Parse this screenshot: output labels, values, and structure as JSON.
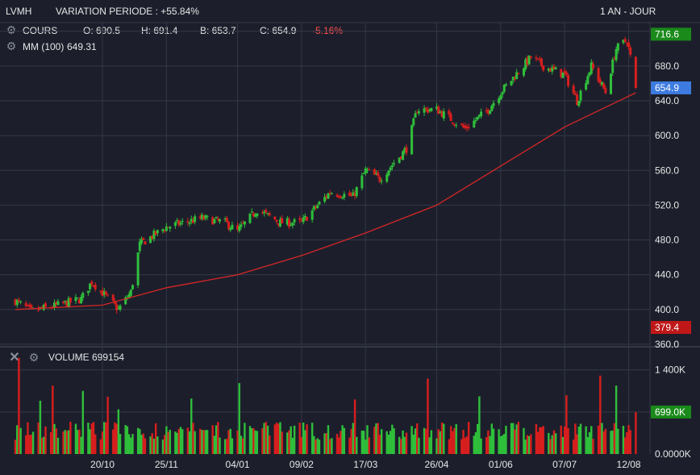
{
  "header": {
    "symbol": "LVMH",
    "variation": "VARIATION PERIODE : +55.84%",
    "period": "1 AN - JOUR"
  },
  "legend": {
    "price_label": "COURS",
    "open": "O: 690.5",
    "high": "H: 691.4",
    "low": "B: 653.7",
    "close": "C: 654.9",
    "change": "-5.16%",
    "ma_label": "MM (100)",
    "ma_value": "649.31",
    "volume_label": "VOLUME",
    "volume_value": "699154"
  },
  "colors": {
    "background": "#1c1f2b",
    "grid": "#343846",
    "up": "#2fbf3b",
    "down": "#d81e1e",
    "ma": "#d62626",
    "change_negative": "#ff4d4d",
    "badge_high": "#1a8a1a",
    "badge_last": "#3d7be0",
    "badge_low": "#c01818",
    "badge_volume": "#1a8a1a"
  },
  "chart_data": [
    {
      "type": "candlestick",
      "title": "LVMH",
      "series": [
        {
          "name": "COURS",
          "anchors": [
            {
              "date": "2020-09-01",
              "close": 410
            },
            {
              "date": "2020-09-10",
              "close": 398
            },
            {
              "date": "2020-09-25",
              "close": 405
            },
            {
              "date": "2020-10-08",
              "close": 412
            },
            {
              "date": "2020-10-14",
              "close": 432
            },
            {
              "date": "2020-10-29",
              "close": 400
            },
            {
              "date": "2020-11-05",
              "close": 420
            },
            {
              "date": "2020-11-10",
              "close": 475
            },
            {
              "date": "2020-11-25",
              "close": 495
            },
            {
              "date": "2020-12-15",
              "close": 505
            },
            {
              "date": "2020-12-28",
              "close": 500
            },
            {
              "date": "2021-01-04",
              "close": 490
            },
            {
              "date": "2021-01-15",
              "close": 515
            },
            {
              "date": "2021-01-28",
              "close": 500
            },
            {
              "date": "2021-02-09",
              "close": 500
            },
            {
              "date": "2021-02-25",
              "close": 535
            },
            {
              "date": "2021-03-10",
              "close": 530
            },
            {
              "date": "2021-03-17",
              "close": 560
            },
            {
              "date": "2021-03-25",
              "close": 550
            },
            {
              "date": "2021-04-09",
              "close": 585
            },
            {
              "date": "2021-04-15",
              "close": 630
            },
            {
              "date": "2021-04-26",
              "close": 630
            },
            {
              "date": "2021-05-12",
              "close": 608
            },
            {
              "date": "2021-05-25",
              "close": 630
            },
            {
              "date": "2021-06-01",
              "close": 650
            },
            {
              "date": "2021-06-18",
              "close": 690
            },
            {
              "date": "2021-06-25",
              "close": 680
            },
            {
              "date": "2021-07-07",
              "close": 670
            },
            {
              "date": "2021-07-14",
              "close": 640
            },
            {
              "date": "2021-07-22",
              "close": 680
            },
            {
              "date": "2021-07-30",
              "close": 650
            },
            {
              "date": "2021-08-05",
              "close": 700
            },
            {
              "date": "2021-08-11",
              "close": 710
            },
            {
              "date": "2021-08-13",
              "close": 690.5
            },
            {
              "date": "2021-08-16",
              "close": 654.9
            }
          ],
          "last": {
            "open": 690.5,
            "high": 691.4,
            "low": 653.7,
            "close": 654.9,
            "change_pct": -5.16
          }
        },
        {
          "name": "MM (100)",
          "anchors": [
            {
              "date": "2020-09-01",
              "value": 400
            },
            {
              "date": "2020-10-20",
              "value": 405
            },
            {
              "date": "2020-11-25",
              "value": 425
            },
            {
              "date": "2021-01-04",
              "value": 440
            },
            {
              "date": "2021-02-09",
              "value": 462
            },
            {
              "date": "2021-03-17",
              "value": 488
            },
            {
              "date": "2021-04-26",
              "value": 520
            },
            {
              "date": "2021-06-01",
              "value": 565
            },
            {
              "date": "2021-07-07",
              "value": 610
            },
            {
              "date": "2021-08-16",
              "value": 649.31
            }
          ]
        }
      ],
      "x_ticks": [
        "20/10",
        "25/11",
        "04/01",
        "09/02",
        "17/03",
        "26/04",
        "01/06",
        "07/07",
        "12/08"
      ],
      "x_tick_dates": [
        "2020-10-20",
        "2020-11-25",
        "2021-01-04",
        "2021-02-09",
        "2021-03-17",
        "2021-04-26",
        "2021-06-01",
        "2021-07-07",
        "2021-08-12"
      ],
      "x_range": [
        "2020-08-27",
        "2021-08-24"
      ],
      "y_ticks": [
        360,
        400,
        440,
        480,
        520,
        560,
        600,
        640,
        680,
        720
      ],
      "y_tick_labels": [
        "360.0",
        "400.0",
        "440.0",
        "480.0",
        "520.0",
        "560.0",
        "600.0",
        "640.0",
        "680.0",
        "720.0"
      ],
      "ylim": [
        359,
        730
      ],
      "axis_badges": [
        {
          "label": "716.6",
          "value": 716.6,
          "role": "high"
        },
        {
          "label": "654.9",
          "value": 654.9,
          "role": "last"
        },
        {
          "label": "379.4",
          "value": 379.4,
          "role": "low"
        }
      ],
      "grid": true
    },
    {
      "type": "bar",
      "title": "VOLUME",
      "y_ticks": [
        0,
        699000,
        1400000
      ],
      "y_tick_labels": [
        "0.0000K",
        "699.0K",
        "1 400K"
      ],
      "ylim": [
        0,
        1650000
      ],
      "volume_levels": {
        "typical": 430000,
        "max": 1600000,
        "last": 699154
      },
      "grid": true
    }
  ]
}
